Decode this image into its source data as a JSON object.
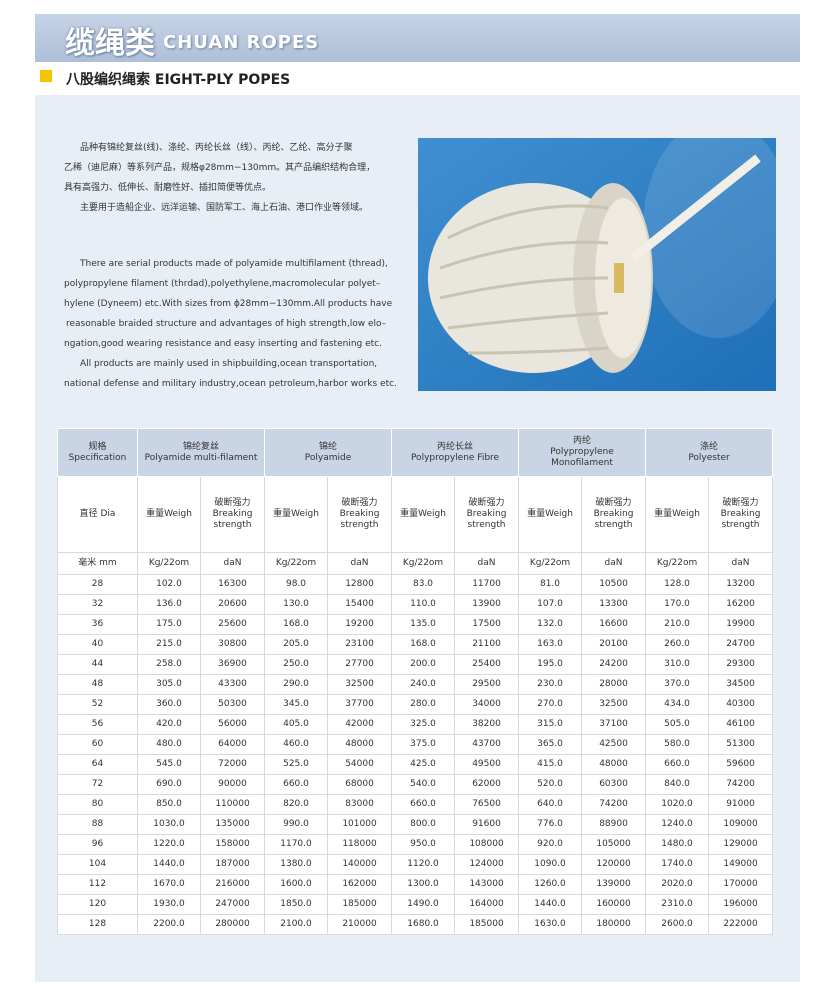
{
  "header": {
    "title_cn": "缆绳类",
    "title_en": "CHUAN ROPES"
  },
  "section": {
    "title_cn": "八股编织绳索",
    "title_en": "EIGHT-PLY POPES"
  },
  "intro_cn": [
    "品种有锦纶复丝(线)、涤纶、丙纶长丝（线）、丙纶、乙纶、高分子聚",
    "乙稀（迪尼麻）等系列产品，规格φ28mm−130mm。其产品编织结构合理，",
    "具有高强力、低伸长、耐磨性好、插扣简便等优点。",
    "主要用于造船企业、远洋运输、国防军工、海上石油、港口作业等领域。"
  ],
  "intro_en": [
    "There are serial products made of polyamide multifilament (thread),",
    "polypropylene filament (thrdad),polyethylene,macromolecular polyet–",
    "hylene (Dyneem) etc.With sizes from ϕ28mm−130mm.All products have",
    "reasonable braided structure and advantages of high strength,low elo–",
    "ngation,good wearing resistance and easy  inserting and fastening etc.",
    "All products are mainly used in shipbuilding,ocean transportation,",
    "national defense and military industry,ocean petroleum,harbor works etc."
  ],
  "table": {
    "spec": [
      "规格",
      "Specification"
    ],
    "groups": [
      {
        "cn": "锦纶复丝",
        "en": "Polyamide multi-filament"
      },
      {
        "cn": "锦纶",
        "en": "Polyamide"
      },
      {
        "cn": "丙纶长丝",
        "en": "Polypropylene Fibre"
      },
      {
        "cn": "丙纶",
        "en": "Polypropylene Monofilament"
      },
      {
        "cn": "涤纶",
        "en": "Polyester"
      }
    ],
    "subheader": [
      [
        "直径 Dia"
      ],
      [
        "重量Weigh"
      ],
      [
        "破断强力",
        "Breaking",
        "strength"
      ],
      [
        "重量Weigh"
      ],
      [
        "破断强力",
        "Breaking",
        "strength"
      ],
      [
        "重量Weigh"
      ],
      [
        "破断强力",
        "Breaking",
        "strength"
      ],
      [
        "重量Weigh"
      ],
      [
        "破断强力",
        "Breaking",
        "strength"
      ],
      [
        "重量Weigh"
      ],
      [
        "破断强力",
        "Breaking",
        "strength"
      ]
    ],
    "units": [
      "毫米 mm",
      "Kg/22om",
      "daN",
      "Kg/22om",
      "daN",
      "Kg/22om",
      "daN",
      "Kg/22om",
      "daN",
      "Kg/22om",
      "daN"
    ],
    "rows": [
      [
        "28",
        "102.0",
        "16300",
        "98.0",
        "12800",
        "83.0",
        "11700",
        "81.0",
        "10500",
        "128.0",
        "13200"
      ],
      [
        "32",
        "136.0",
        "20600",
        "130.0",
        "15400",
        "110.0",
        "13900",
        "107.0",
        "13300",
        "170.0",
        "16200"
      ],
      [
        "36",
        "175.0",
        "25600",
        "168.0",
        "19200",
        "135.0",
        "17500",
        "132.0",
        "16600",
        "210.0",
        "19900"
      ],
      [
        "40",
        "215.0",
        "30800",
        "205.0",
        "23100",
        "168.0",
        "21100",
        "163.0",
        "20100",
        "260.0",
        "24700"
      ],
      [
        "44",
        "258.0",
        "36900",
        "250.0",
        "27700",
        "200.0",
        "25400",
        "195.0",
        "24200",
        "310.0",
        "29300"
      ],
      [
        "48",
        "305.0",
        "43300",
        "290.0",
        "32500",
        "240.0",
        "29500",
        "230.0",
        "28000",
        "370.0",
        "34500"
      ],
      [
        "52",
        "360.0",
        "50300",
        "345.0",
        "37700",
        "280.0",
        "34000",
        "270.0",
        "32500",
        "434.0",
        "40300"
      ],
      [
        "56",
        "420.0",
        "56000",
        "405.0",
        "42000",
        "325.0",
        "38200",
        "315.0",
        "37100",
        "505.0",
        "46100"
      ],
      [
        "60",
        "480.0",
        "64000",
        "460.0",
        "48000",
        "375.0",
        "43700",
        "365.0",
        "42500",
        "580.0",
        "51300"
      ],
      [
        "64",
        "545.0",
        "72000",
        "525.0",
        "54000",
        "425.0",
        "49500",
        "415.0",
        "48000",
        "660.0",
        "59600"
      ],
      [
        "72",
        "690.0",
        "90000",
        "660.0",
        "68000",
        "540.0",
        "62000",
        "520.0",
        "60300",
        "840.0",
        "74200"
      ],
      [
        "80",
        "850.0",
        "110000",
        "820.0",
        "83000",
        "660.0",
        "76500",
        "640.0",
        "74200",
        "1020.0",
        "91000"
      ],
      [
        "88",
        "1030.0",
        "135000",
        "990.0",
        "101000",
        "800.0",
        "91600",
        "776.0",
        "88900",
        "1240.0",
        "109000"
      ],
      [
        "96",
        "1220.0",
        "158000",
        "1170.0",
        "118000",
        "950.0",
        "108000",
        "920.0",
        "105000",
        "1480.0",
        "129000"
      ],
      [
        "104",
        "1440.0",
        "187000",
        "1380.0",
        "140000",
        "1120.0",
        "124000",
        "1090.0",
        "120000",
        "1740.0",
        "149000"
      ],
      [
        "112",
        "1670.0",
        "216000",
        "1600.0",
        "162000",
        "1300.0",
        "143000",
        "1260.0",
        "139000",
        "2020.0",
        "170000"
      ],
      [
        "120",
        "1930.0",
        "247000",
        "1850.0",
        "185000",
        "1490.0",
        "164000",
        "1440.0",
        "160000",
        "2310.0",
        "196000"
      ],
      [
        "128",
        "2200.0",
        "280000",
        "2100.0",
        "210000",
        "1680.0",
        "185000",
        "1630.0",
        "180000",
        "2600.0",
        "222000"
      ]
    ]
  }
}
